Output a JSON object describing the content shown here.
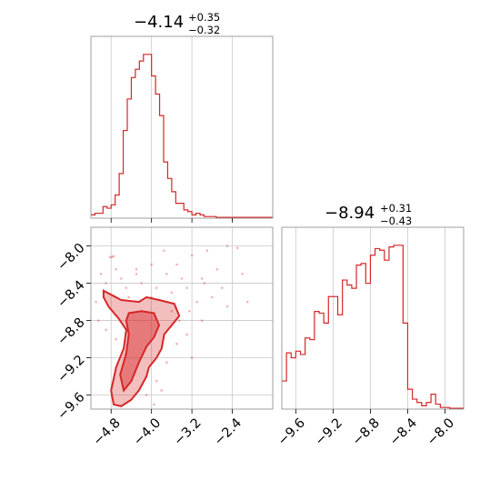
{
  "colors": {
    "series": "#d62728",
    "grid": "#c8c8c8",
    "frame": "#888888"
  },
  "chart_data": [
    {
      "type": "histogram",
      "panel": "marginal-x",
      "title": {
        "median": "−4.14",
        "plus": "+0.35",
        "minus": "−0.32"
      },
      "xlim": [
        -5.2,
        -1.6
      ],
      "xticks": [
        -4.8,
        -4.0,
        -3.2,
        -2.4
      ],
      "grid": true,
      "bin_left_edges": [
        -5.2,
        -5.12,
        -5.04,
        -4.96,
        -4.88,
        -4.8,
        -4.72,
        -4.64,
        -4.56,
        -4.48,
        -4.4,
        -4.32,
        -4.24,
        -4.16,
        -4.08,
        -4.0,
        -3.92,
        -3.84,
        -3.76,
        -3.68,
        -3.6,
        -3.52,
        -3.44,
        -3.36,
        -3.28,
        -3.2,
        -3.12,
        -3.04,
        -2.96,
        -2.88,
        -2.8,
        -2.72,
        -2.64,
        -2.56,
        -2.48,
        -2.4,
        -2.32,
        -2.24,
        -2.16,
        -2.08,
        -2.0,
        -1.92,
        -1.84,
        -1.76,
        -1.68
      ],
      "counts": [
        2,
        3,
        3,
        7,
        6,
        8,
        14,
        27,
        53,
        72,
        85,
        90,
        95,
        99,
        99,
        86,
        75,
        62,
        34,
        24,
        16,
        9,
        9,
        5,
        4,
        2,
        3,
        2,
        1,
        1,
        1,
        0.5,
        0.5,
        0.5,
        0.5,
        0.5,
        0.5,
        0.5,
        0.5,
        0.5,
        0.5,
        0.5,
        0.5,
        0.5,
        0.5
      ],
      "ymax": 100
    },
    {
      "type": "contour",
      "panel": "joint",
      "xlim": [
        -5.2,
        -1.6
      ],
      "ylim": [
        -9.75,
        -7.8
      ],
      "xticks": [
        -4.8,
        -4.0,
        -3.2,
        -2.4
      ],
      "yticks": [
        -8.0,
        -8.4,
        -8.8,
        -9.2,
        -9.6
      ],
      "grid": true,
      "contour_outer": [
        [
          -4.95,
          -8.48
        ],
        [
          -4.6,
          -8.58
        ],
        [
          -4.25,
          -8.6
        ],
        [
          -4.1,
          -8.55
        ],
        [
          -3.85,
          -8.58
        ],
        [
          -3.55,
          -8.62
        ],
        [
          -3.45,
          -8.75
        ],
        [
          -3.6,
          -8.85
        ],
        [
          -3.75,
          -8.95
        ],
        [
          -3.8,
          -9.1
        ],
        [
          -3.9,
          -9.2
        ],
        [
          -4.05,
          -9.3
        ],
        [
          -4.1,
          -9.4
        ],
        [
          -4.25,
          -9.55
        ],
        [
          -4.4,
          -9.65
        ],
        [
          -4.6,
          -9.72
        ],
        [
          -4.75,
          -9.7
        ],
        [
          -4.8,
          -9.55
        ],
        [
          -4.7,
          -9.3
        ],
        [
          -4.55,
          -9.1
        ],
        [
          -4.5,
          -8.9
        ],
        [
          -4.65,
          -8.78
        ],
        [
          -4.85,
          -8.65
        ],
        [
          -4.95,
          -8.55
        ]
      ],
      "contour_inner": [
        [
          -4.45,
          -8.72
        ],
        [
          -4.2,
          -8.7
        ],
        [
          -3.95,
          -8.72
        ],
        [
          -3.85,
          -8.85
        ],
        [
          -3.95,
          -8.98
        ],
        [
          -4.1,
          -9.08
        ],
        [
          -4.25,
          -9.25
        ],
        [
          -4.4,
          -9.45
        ],
        [
          -4.55,
          -9.55
        ],
        [
          -4.62,
          -9.38
        ],
        [
          -4.5,
          -9.15
        ],
        [
          -4.45,
          -8.95
        ],
        [
          -4.5,
          -8.8
        ]
      ],
      "scatter": [
        [
          -4.82,
          -8.12
        ],
        [
          -4.78,
          -8.12
        ],
        [
          -4.75,
          -8.11
        ],
        [
          -5.0,
          -8.3
        ],
        [
          -4.9,
          -8.4
        ],
        [
          -4.6,
          -8.35
        ],
        [
          -4.3,
          -8.25
        ],
        [
          -4.0,
          -8.2
        ],
        [
          -3.7,
          -8.3
        ],
        [
          -3.5,
          -8.2
        ],
        [
          -3.2,
          -8.1
        ],
        [
          -2.9,
          -8.05
        ],
        [
          -2.5,
          -8.0
        ],
        [
          -2.3,
          -8.02
        ],
        [
          -2.7,
          -8.25
        ],
        [
          -3.0,
          -8.35
        ],
        [
          -3.3,
          -8.45
        ],
        [
          -3.6,
          -8.5
        ],
        [
          -3.9,
          -8.45
        ],
        [
          -4.2,
          -8.4
        ],
        [
          -4.5,
          -8.45
        ],
        [
          -3.1,
          -8.6
        ],
        [
          -2.8,
          -8.55
        ],
        [
          -2.5,
          -8.65
        ],
        [
          -3.0,
          -8.8
        ],
        [
          -3.3,
          -8.95
        ],
        [
          -3.5,
          -9.05
        ],
        [
          -3.7,
          -9.25
        ],
        [
          -3.9,
          -9.45
        ],
        [
          -4.1,
          -9.6
        ],
        [
          -3.95,
          -9.7
        ],
        [
          -4.7,
          -9.0
        ],
        [
          -4.9,
          -8.9
        ],
        [
          -5.1,
          -8.6
        ],
        [
          -5.05,
          -8.8
        ],
        [
          -3.45,
          -8.8
        ],
        [
          -3.6,
          -8.7
        ],
        [
          -4.0,
          -8.55
        ],
        [
          -3.75,
          -8.05
        ],
        [
          -3.4,
          -8.35
        ],
        [
          -2.95,
          -8.4
        ],
        [
          -2.6,
          -8.45
        ],
        [
          -2.2,
          -8.3
        ],
        [
          -2.1,
          -8.6
        ],
        [
          -3.2,
          -9.2
        ],
        [
          -3.8,
          -9.55
        ],
        [
          -4.3,
          -8.3
        ],
        [
          -4.7,
          -8.25
        ],
        [
          -4.45,
          -8.55
        ],
        [
          -3.25,
          -8.7
        ]
      ]
    },
    {
      "type": "histogram",
      "panel": "marginal-y",
      "title": {
        "median": "−8.94",
        "plus": "+0.31",
        "minus": "−0.43"
      },
      "xlim": [
        -9.75,
        -7.8
      ],
      "xticks": [
        -9.6,
        -9.2,
        -8.8,
        -8.4,
        -8.0
      ],
      "grid": true,
      "bin_left_edges": [
        -9.75,
        -9.7,
        -9.65,
        -9.6,
        -9.55,
        -9.5,
        -9.45,
        -9.4,
        -9.35,
        -9.3,
        -9.25,
        -9.2,
        -9.15,
        -9.1,
        -9.05,
        -9.0,
        -8.95,
        -8.9,
        -8.85,
        -8.8,
        -8.75,
        -8.7,
        -8.65,
        -8.6,
        -8.55,
        -8.5,
        -8.45,
        -8.4,
        -8.35,
        -8.3,
        -8.25,
        -8.2,
        -8.15,
        -8.1,
        -8.05,
        -8.0,
        -7.95,
        -7.9,
        -7.85
      ],
      "counts": [
        17,
        34,
        31,
        35,
        33,
        43,
        42,
        59,
        58,
        52,
        68,
        68,
        57,
        78,
        75,
        73,
        87,
        88,
        76,
        93,
        97,
        96,
        90,
        98,
        99,
        99,
        52,
        12,
        6,
        4,
        2,
        4,
        9,
        3,
        1,
        1,
        0.5,
        0.5,
        0.5
      ],
      "ymax": 100
    }
  ]
}
